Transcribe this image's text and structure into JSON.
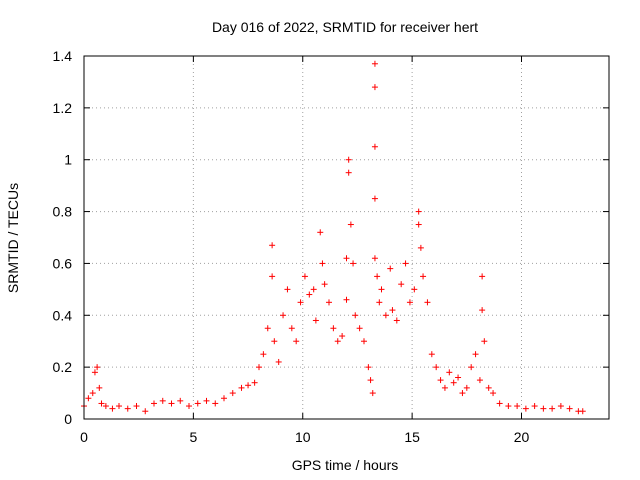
{
  "chart_data": {
    "type": "scatter",
    "title": "Day 016 of 2022, SRMTID for receiver hert",
    "xlabel": "GPS time / hours",
    "ylabel": "SRMTID / TECUs",
    "xlim": [
      0,
      24
    ],
    "ylim": [
      0,
      1.4
    ],
    "xticks": [
      0,
      5,
      10,
      15,
      20
    ],
    "xtick_labels": [
      "0",
      "5",
      "10",
      "15",
      "20"
    ],
    "yticks": [
      0,
      0.2,
      0.4,
      0.6,
      0.8,
      1,
      1.2,
      1.4
    ],
    "ytick_labels": [
      "0",
      "0.2",
      "0.4",
      "0.6",
      "0.8",
      "1",
      "1.2",
      "1.4"
    ],
    "grid": true,
    "marker": "+",
    "color": "#ff0000",
    "series": [
      {
        "name": "SRMTID",
        "x": [
          0.0,
          0.2,
          0.4,
          0.5,
          0.6,
          0.7,
          0.8,
          1.0,
          1.3,
          1.6,
          2.0,
          2.4,
          2.8,
          3.2,
          3.6,
          4.0,
          4.4,
          4.8,
          5.2,
          5.6,
          6.0,
          6.4,
          6.8,
          7.2,
          7.5,
          7.8,
          8.0,
          8.2,
          8.4,
          8.6,
          8.6,
          8.7,
          8.9,
          9.1,
          9.3,
          9.5,
          9.7,
          9.9,
          10.1,
          10.3,
          10.5,
          10.6,
          10.8,
          10.9,
          11.0,
          11.2,
          11.4,
          11.6,
          11.8,
          12.0,
          12.0,
          12.1,
          12.1,
          12.2,
          12.3,
          12.4,
          12.6,
          12.8,
          13.0,
          13.1,
          13.2,
          13.3,
          13.3,
          13.3,
          13.3,
          13.3,
          13.4,
          13.5,
          13.6,
          13.8,
          14.0,
          14.1,
          14.3,
          14.5,
          14.7,
          14.9,
          15.1,
          15.3,
          15.3,
          15.4,
          15.5,
          15.7,
          15.9,
          16.1,
          16.3,
          16.5,
          16.7,
          16.9,
          17.1,
          17.3,
          17.5,
          17.7,
          17.9,
          18.1,
          18.2,
          18.2,
          18.3,
          18.5,
          18.7,
          19.0,
          19.4,
          19.8,
          20.2,
          20.6,
          21.0,
          21.4,
          21.8,
          22.2,
          22.6,
          22.8
        ],
        "y": [
          0.05,
          0.08,
          0.1,
          0.18,
          0.2,
          0.12,
          0.06,
          0.05,
          0.04,
          0.05,
          0.04,
          0.05,
          0.03,
          0.06,
          0.07,
          0.06,
          0.07,
          0.05,
          0.06,
          0.07,
          0.06,
          0.08,
          0.1,
          0.12,
          0.13,
          0.14,
          0.2,
          0.25,
          0.35,
          0.55,
          0.67,
          0.3,
          0.22,
          0.4,
          0.5,
          0.35,
          0.3,
          0.45,
          0.55,
          0.48,
          0.5,
          0.38,
          0.72,
          0.6,
          0.52,
          0.45,
          0.35,
          0.3,
          0.32,
          0.46,
          0.62,
          0.95,
          1.0,
          0.75,
          0.6,
          0.4,
          0.35,
          0.3,
          0.2,
          0.15,
          0.1,
          1.37,
          1.28,
          1.05,
          0.85,
          0.62,
          0.55,
          0.45,
          0.5,
          0.4,
          0.58,
          0.42,
          0.38,
          0.52,
          0.6,
          0.45,
          0.5,
          0.75,
          0.8,
          0.66,
          0.55,
          0.45,
          0.25,
          0.2,
          0.15,
          0.12,
          0.18,
          0.14,
          0.16,
          0.1,
          0.12,
          0.2,
          0.25,
          0.15,
          0.55,
          0.42,
          0.3,
          0.12,
          0.1,
          0.06,
          0.05,
          0.05,
          0.04,
          0.05,
          0.04,
          0.04,
          0.05,
          0.04,
          0.03,
          0.03
        ]
      }
    ]
  }
}
